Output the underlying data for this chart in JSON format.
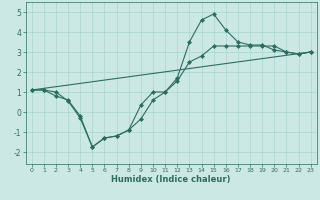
{
  "title": "",
  "xlabel": "Humidex (Indice chaleur)",
  "xlim": [
    -0.5,
    23.5
  ],
  "ylim": [
    -2.6,
    5.5
  ],
  "xticks": [
    0,
    1,
    2,
    3,
    4,
    5,
    6,
    7,
    8,
    9,
    10,
    11,
    12,
    13,
    14,
    15,
    16,
    17,
    18,
    19,
    20,
    21,
    22,
    23
  ],
  "yticks": [
    -2,
    -1,
    0,
    1,
    2,
    3,
    4,
    5
  ],
  "bg_color": "#cce8e4",
  "line_color": "#2a6e62",
  "grid_color": "#aad4ce",
  "line1_x": [
    0,
    1,
    2,
    3,
    4,
    5,
    6,
    7,
    8,
    9,
    10,
    11,
    12,
    13,
    14,
    15,
    16,
    17,
    18,
    19,
    20,
    21,
    22,
    23
  ],
  "line1_y": [
    1.1,
    1.1,
    1.0,
    0.55,
    -0.3,
    -1.75,
    -1.3,
    -1.2,
    -0.9,
    -0.35,
    0.6,
    1.0,
    1.7,
    3.5,
    4.6,
    4.9,
    4.1,
    3.5,
    3.35,
    3.35,
    3.1,
    3.0,
    2.9,
    3.0
  ],
  "line2_x": [
    0,
    1,
    2,
    3,
    4,
    5,
    6,
    7,
    8,
    9,
    10,
    11,
    12,
    13,
    14,
    15,
    16,
    17,
    18,
    19,
    20,
    21,
    22,
    23
  ],
  "line2_y": [
    1.1,
    1.1,
    0.8,
    0.6,
    -0.2,
    -1.75,
    -1.3,
    -1.2,
    -0.9,
    0.35,
    1.0,
    1.0,
    1.55,
    2.5,
    2.8,
    3.3,
    3.3,
    3.3,
    3.3,
    3.3,
    3.3,
    3.0,
    2.9,
    3.0
  ],
  "line3_x": [
    0,
    23
  ],
  "line3_y": [
    1.1,
    3.0
  ]
}
